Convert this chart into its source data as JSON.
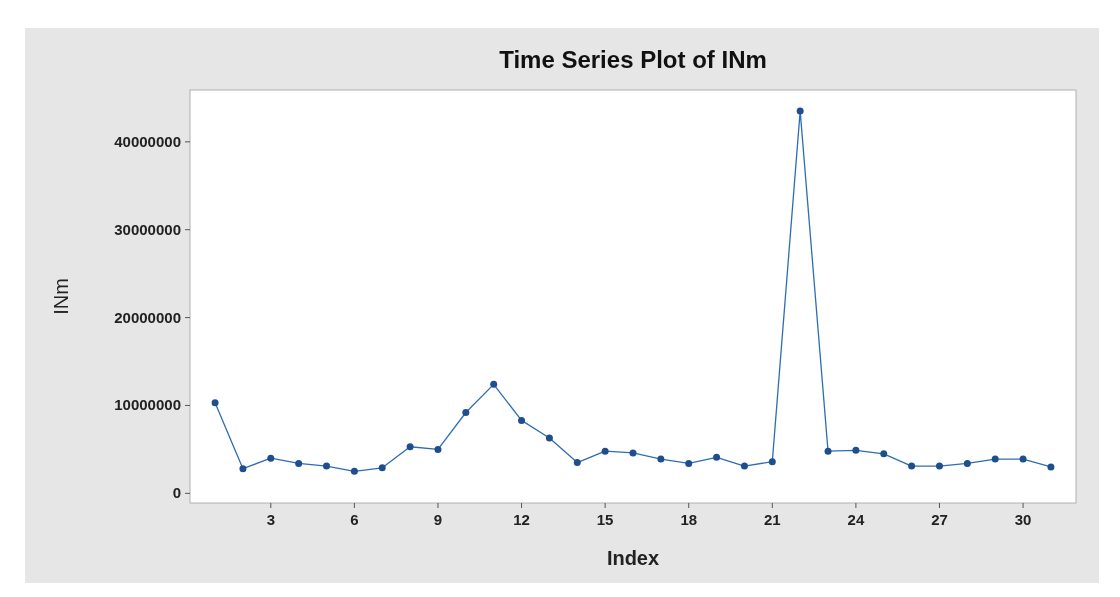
{
  "chart_data": {
    "type": "line",
    "title": "Time Series Plot of INm",
    "xlabel": "Index",
    "ylabel": "INm",
    "x": [
      1,
      2,
      3,
      4,
      5,
      6,
      7,
      8,
      9,
      10,
      11,
      12,
      13,
      14,
      15,
      16,
      17,
      18,
      19,
      20,
      21,
      22,
      23,
      24,
      25,
      26,
      27,
      28,
      29,
      30,
      31
    ],
    "series": [
      {
        "color": "#2e6db4",
        "values": [
          10300000,
          2800000,
          4000000,
          3400000,
          3100000,
          2500000,
          2900000,
          5300000,
          5000000,
          9200000,
          12400000,
          8300000,
          6300000,
          3500000,
          4800000,
          4600000,
          3900000,
          3400000,
          4100000,
          3100000,
          3600000,
          43500000,
          4800000,
          4900000,
          4500000,
          3100000,
          3100000,
          3400000,
          3900000,
          3900000,
          3000000
        ]
      }
    ],
    "xlim": [
      0.1,
      31.9
    ],
    "xticks": [
      3,
      6,
      9,
      12,
      15,
      18,
      21,
      24,
      27,
      30
    ],
    "ylim": [
      -1100000,
      45900000
    ],
    "yticks": [
      0,
      10000000,
      20000000,
      30000000,
      40000000
    ],
    "marker": "circle",
    "line_style": "solid"
  }
}
